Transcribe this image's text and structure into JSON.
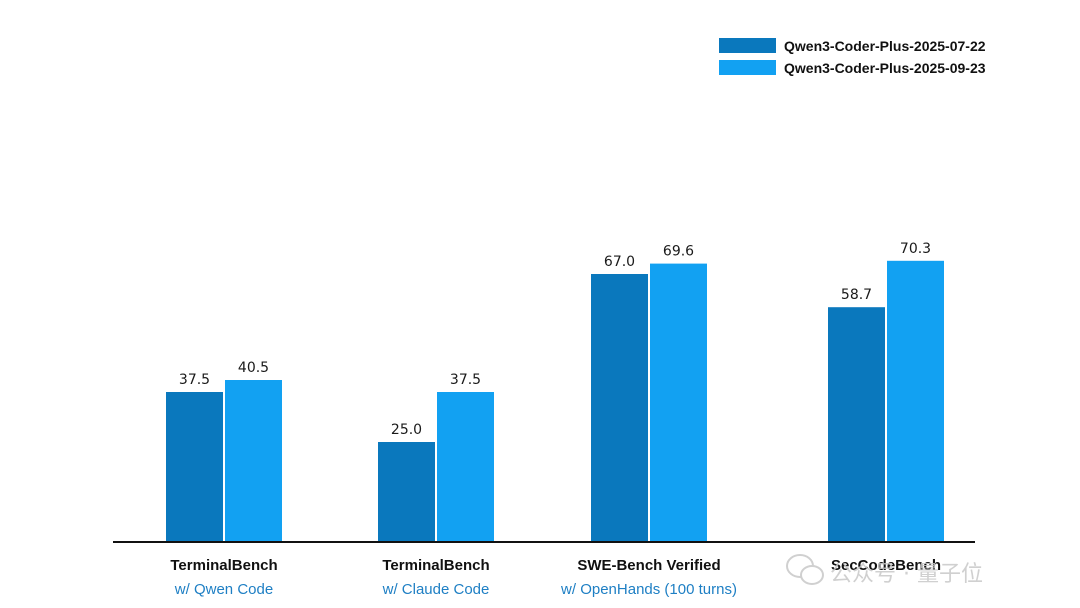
{
  "chart_data": {
    "type": "bar",
    "categories": [
      {
        "name": "TerminalBench",
        "sub": "w/ Qwen Code"
      },
      {
        "name": "TerminalBench",
        "sub": "w/ Claude Code"
      },
      {
        "name": "SWE-Bench Verified",
        "sub": "w/ OpenHands (100 turns)"
      },
      {
        "name": "SecCodeBench",
        "sub": ""
      }
    ],
    "series": [
      {
        "name": "Qwen3-Coder-Plus-2025-07-22",
        "color": "#0a78bd",
        "values": [
          37.5,
          25.0,
          67.0,
          58.7
        ],
        "labels": [
          "37.5",
          "25.0",
          "67.0",
          "58.7"
        ]
      },
      {
        "name": "Qwen3-Coder-Plus-2025-09-23",
        "color": "#12a1f2",
        "values": [
          40.5,
          37.5,
          69.6,
          70.3
        ],
        "labels": [
          "40.5",
          "37.5",
          "69.6",
          "70.3"
        ]
      }
    ],
    "ylim": [
      0,
      75
    ],
    "grid": false,
    "legend_position": "top-right",
    "title": "",
    "xlabel": "",
    "ylabel": ""
  },
  "watermark": {
    "text": "公众号 · 量子位",
    "icon": "wechat-icon"
  }
}
